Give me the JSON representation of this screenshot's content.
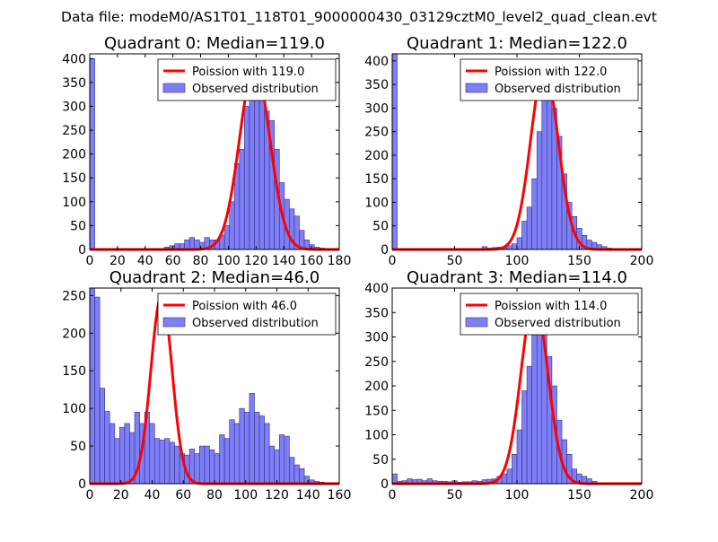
{
  "figure_title": "Data file: modeM0/AS1T01_118T01_9000000430_03129cztM0_level2_quad_clean.evt",
  "colors": {
    "bar_fill": "#7f7ff5",
    "bar_stroke": "#2f2f8f",
    "poisson_line": "#ff0000"
  },
  "chart_data": [
    {
      "type": "bar",
      "title": "Quadrant 0: Median=119.0",
      "xlim": [
        0,
        180
      ],
      "ylim": [
        0,
        410
      ],
      "xticks": [
        0,
        20,
        40,
        60,
        80,
        100,
        120,
        140,
        160,
        180
      ],
      "yticks": [
        0,
        50,
        100,
        150,
        200,
        250,
        300,
        350,
        400
      ],
      "bin_width": 3.6,
      "hist": [
        [
          0,
          400
        ],
        [
          54,
          5
        ],
        [
          57.6,
          8
        ],
        [
          61.2,
          12
        ],
        [
          64.8,
          12
        ],
        [
          68.4,
          20
        ],
        [
          72,
          25
        ],
        [
          75.6,
          20
        ],
        [
          79.2,
          15
        ],
        [
          82.8,
          25
        ],
        [
          86.4,
          20
        ],
        [
          90,
          20
        ],
        [
          93.6,
          30
        ],
        [
          97.2,
          50
        ],
        [
          100.8,
          100
        ],
        [
          104.4,
          180
        ],
        [
          108,
          210
        ],
        [
          111.6,
          300
        ],
        [
          115.2,
          370
        ],
        [
          118.8,
          380
        ],
        [
          122.4,
          330
        ],
        [
          126,
          290
        ],
        [
          129.6,
          270
        ],
        [
          133.2,
          210
        ],
        [
          136.8,
          140
        ],
        [
          140.4,
          105
        ],
        [
          144,
          85
        ],
        [
          147.6,
          70
        ],
        [
          151.2,
          40
        ],
        [
          154.8,
          20
        ],
        [
          158.4,
          10
        ],
        [
          162,
          5
        ],
        [
          165.6,
          3
        ],
        [
          169.2,
          2
        ]
      ],
      "poisson_mean": 119.0,
      "poisson_peak": 385,
      "poisson_sigma": 10.9,
      "legend": [
        "Poission with 119.0",
        "Observed distribution"
      ]
    },
    {
      "type": "bar",
      "title": "Quadrant 1: Median=122.0",
      "xlim": [
        0,
        200
      ],
      "ylim": [
        0,
        415
      ],
      "xticks": [
        0,
        50,
        100,
        150,
        200
      ],
      "yticks": [
        0,
        50,
        100,
        150,
        200,
        250,
        300,
        350,
        400
      ],
      "bin_width": 4,
      "hist": [
        [
          0,
          415
        ],
        [
          72,
          6
        ],
        [
          76,
          3
        ],
        [
          80,
          4
        ],
        [
          84,
          5
        ],
        [
          88,
          4
        ],
        [
          92,
          8
        ],
        [
          96,
          12
        ],
        [
          100,
          25
        ],
        [
          104,
          60
        ],
        [
          108,
          90
        ],
        [
          112,
          150
        ],
        [
          116,
          250
        ],
        [
          120,
          340
        ],
        [
          124,
          370
        ],
        [
          128,
          300
        ],
        [
          132,
          240
        ],
        [
          136,
          160
        ],
        [
          140,
          100
        ],
        [
          144,
          70
        ],
        [
          148,
          45
        ],
        [
          152,
          30
        ],
        [
          156,
          20
        ],
        [
          160,
          15
        ],
        [
          164,
          10
        ],
        [
          168,
          6
        ],
        [
          172,
          3
        ],
        [
          176,
          2
        ]
      ],
      "poisson_mean": 122.0,
      "poisson_peak": 385,
      "poisson_sigma": 11.0,
      "legend": [
        "Poission with 122.0",
        "Observed distribution"
      ]
    },
    {
      "type": "bar",
      "title": "Quadrant 2: Median=46.0",
      "xlim": [
        0,
        160
      ],
      "ylim": [
        0,
        260
      ],
      "xticks": [
        0,
        20,
        40,
        60,
        80,
        100,
        120,
        140,
        160
      ],
      "yticks": [
        0,
        50,
        100,
        150,
        200,
        250
      ],
      "bin_width": 3.2,
      "hist": [
        [
          0,
          260
        ],
        [
          3.2,
          248
        ],
        [
          6.4,
          127
        ],
        [
          9.6,
          96
        ],
        [
          12.8,
          80
        ],
        [
          16,
          60
        ],
        [
          19.2,
          75
        ],
        [
          22.4,
          80
        ],
        [
          25.6,
          68
        ],
        [
          28.8,
          95
        ],
        [
          32,
          80
        ],
        [
          35.2,
          95
        ],
        [
          38.4,
          80
        ],
        [
          41.6,
          60
        ],
        [
          44.8,
          58
        ],
        [
          48,
          60
        ],
        [
          51.2,
          55
        ],
        [
          54.4,
          50
        ],
        [
          57.6,
          40
        ],
        [
          60.8,
          38
        ],
        [
          64,
          46
        ],
        [
          67.2,
          40
        ],
        [
          70.4,
          50
        ],
        [
          73.6,
          50
        ],
        [
          76.8,
          45
        ],
        [
          80,
          40
        ],
        [
          83.2,
          65
        ],
        [
          86.4,
          60
        ],
        [
          89.6,
          85
        ],
        [
          92.8,
          80
        ],
        [
          96,
          100
        ],
        [
          99.2,
          95
        ],
        [
          102.4,
          120
        ],
        [
          105.6,
          95
        ],
        [
          108.8,
          90
        ],
        [
          112,
          80
        ],
        [
          115.2,
          50
        ],
        [
          118.4,
          45
        ],
        [
          121.6,
          65
        ],
        [
          124.8,
          63
        ],
        [
          128,
          35
        ],
        [
          131.2,
          25
        ],
        [
          134.4,
          20
        ],
        [
          137.6,
          10
        ],
        [
          140.8,
          5
        ],
        [
          144,
          3
        ],
        [
          147.2,
          2
        ]
      ],
      "poisson_mean": 46.0,
      "poisson_peak": 250,
      "poisson_sigma": 6.8,
      "legend": [
        "Poission with 46.0",
        "Observed distribution"
      ]
    },
    {
      "type": "bar",
      "title": "Quadrant 3: Median=114.0",
      "xlim": [
        0,
        200
      ],
      "ylim": [
        0,
        400
      ],
      "xticks": [
        0,
        50,
        100,
        150,
        200
      ],
      "yticks": [
        0,
        50,
        100,
        150,
        200,
        250,
        300,
        350,
        400
      ],
      "bin_width": 4,
      "hist": [
        [
          0,
          20
        ],
        [
          4,
          5
        ],
        [
          8,
          6
        ],
        [
          12,
          10
        ],
        [
          16,
          8
        ],
        [
          20,
          9
        ],
        [
          24,
          6
        ],
        [
          28,
          10
        ],
        [
          32,
          6
        ],
        [
          36,
          5
        ],
        [
          40,
          5
        ],
        [
          44,
          4
        ],
        [
          48,
          6
        ],
        [
          52,
          3
        ],
        [
          56,
          4
        ],
        [
          60,
          4
        ],
        [
          64,
          6
        ],
        [
          68,
          5
        ],
        [
          72,
          8
        ],
        [
          76,
          9
        ],
        [
          80,
          10
        ],
        [
          84,
          15
        ],
        [
          88,
          20
        ],
        [
          92,
          30
        ],
        [
          96,
          60
        ],
        [
          100,
          110
        ],
        [
          104,
          190
        ],
        [
          108,
          240
        ],
        [
          112,
          360
        ],
        [
          116,
          370
        ],
        [
          120,
          320
        ],
        [
          124,
          260
        ],
        [
          128,
          200
        ],
        [
          132,
          130
        ],
        [
          136,
          90
        ],
        [
          140,
          60
        ],
        [
          144,
          30
        ],
        [
          148,
          20
        ],
        [
          152,
          15
        ],
        [
          156,
          10
        ],
        [
          160,
          5
        ],
        [
          164,
          2
        ],
        [
          168,
          1
        ]
      ],
      "poisson_mean": 114.0,
      "poisson_peak": 378,
      "poisson_sigma": 10.7,
      "legend": [
        "Poission with 114.0",
        "Observed distribution"
      ]
    }
  ]
}
